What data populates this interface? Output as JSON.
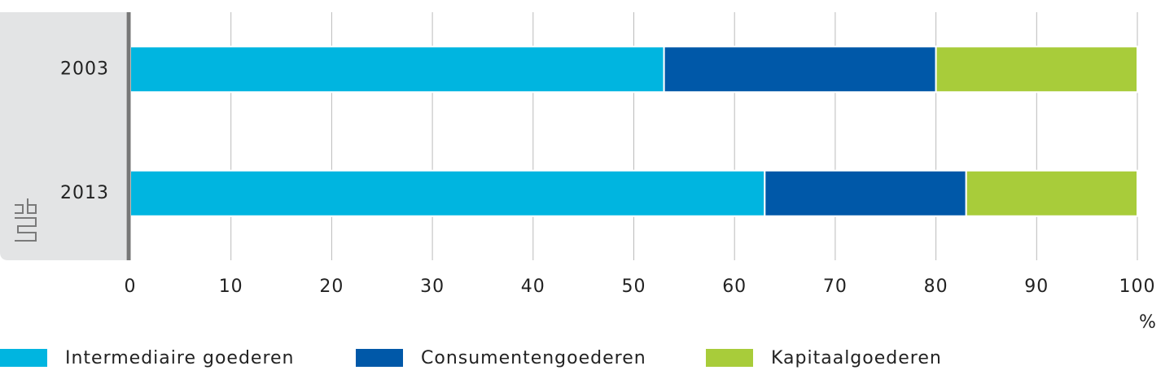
{
  "chart_data": {
    "type": "stacked-barh",
    "categories": [
      "2003",
      "2013"
    ],
    "series": [
      {
        "name": "Intermediaire goederen",
        "color": "#00b5e0",
        "values": [
          53,
          63
        ]
      },
      {
        "name": "Consumentengoederen",
        "color": "#0058a8",
        "values": [
          27,
          20
        ]
      },
      {
        "name": "Kapitaalgoederen",
        "color": "#a8cc3a",
        "values": [
          20,
          17
        ]
      }
    ],
    "xlim": [
      0,
      100
    ],
    "xticks": [
      0,
      10,
      20,
      30,
      40,
      50,
      60,
      70,
      80,
      90,
      100
    ],
    "xlabel": "%",
    "grid": true,
    "legend": "bottom"
  }
}
